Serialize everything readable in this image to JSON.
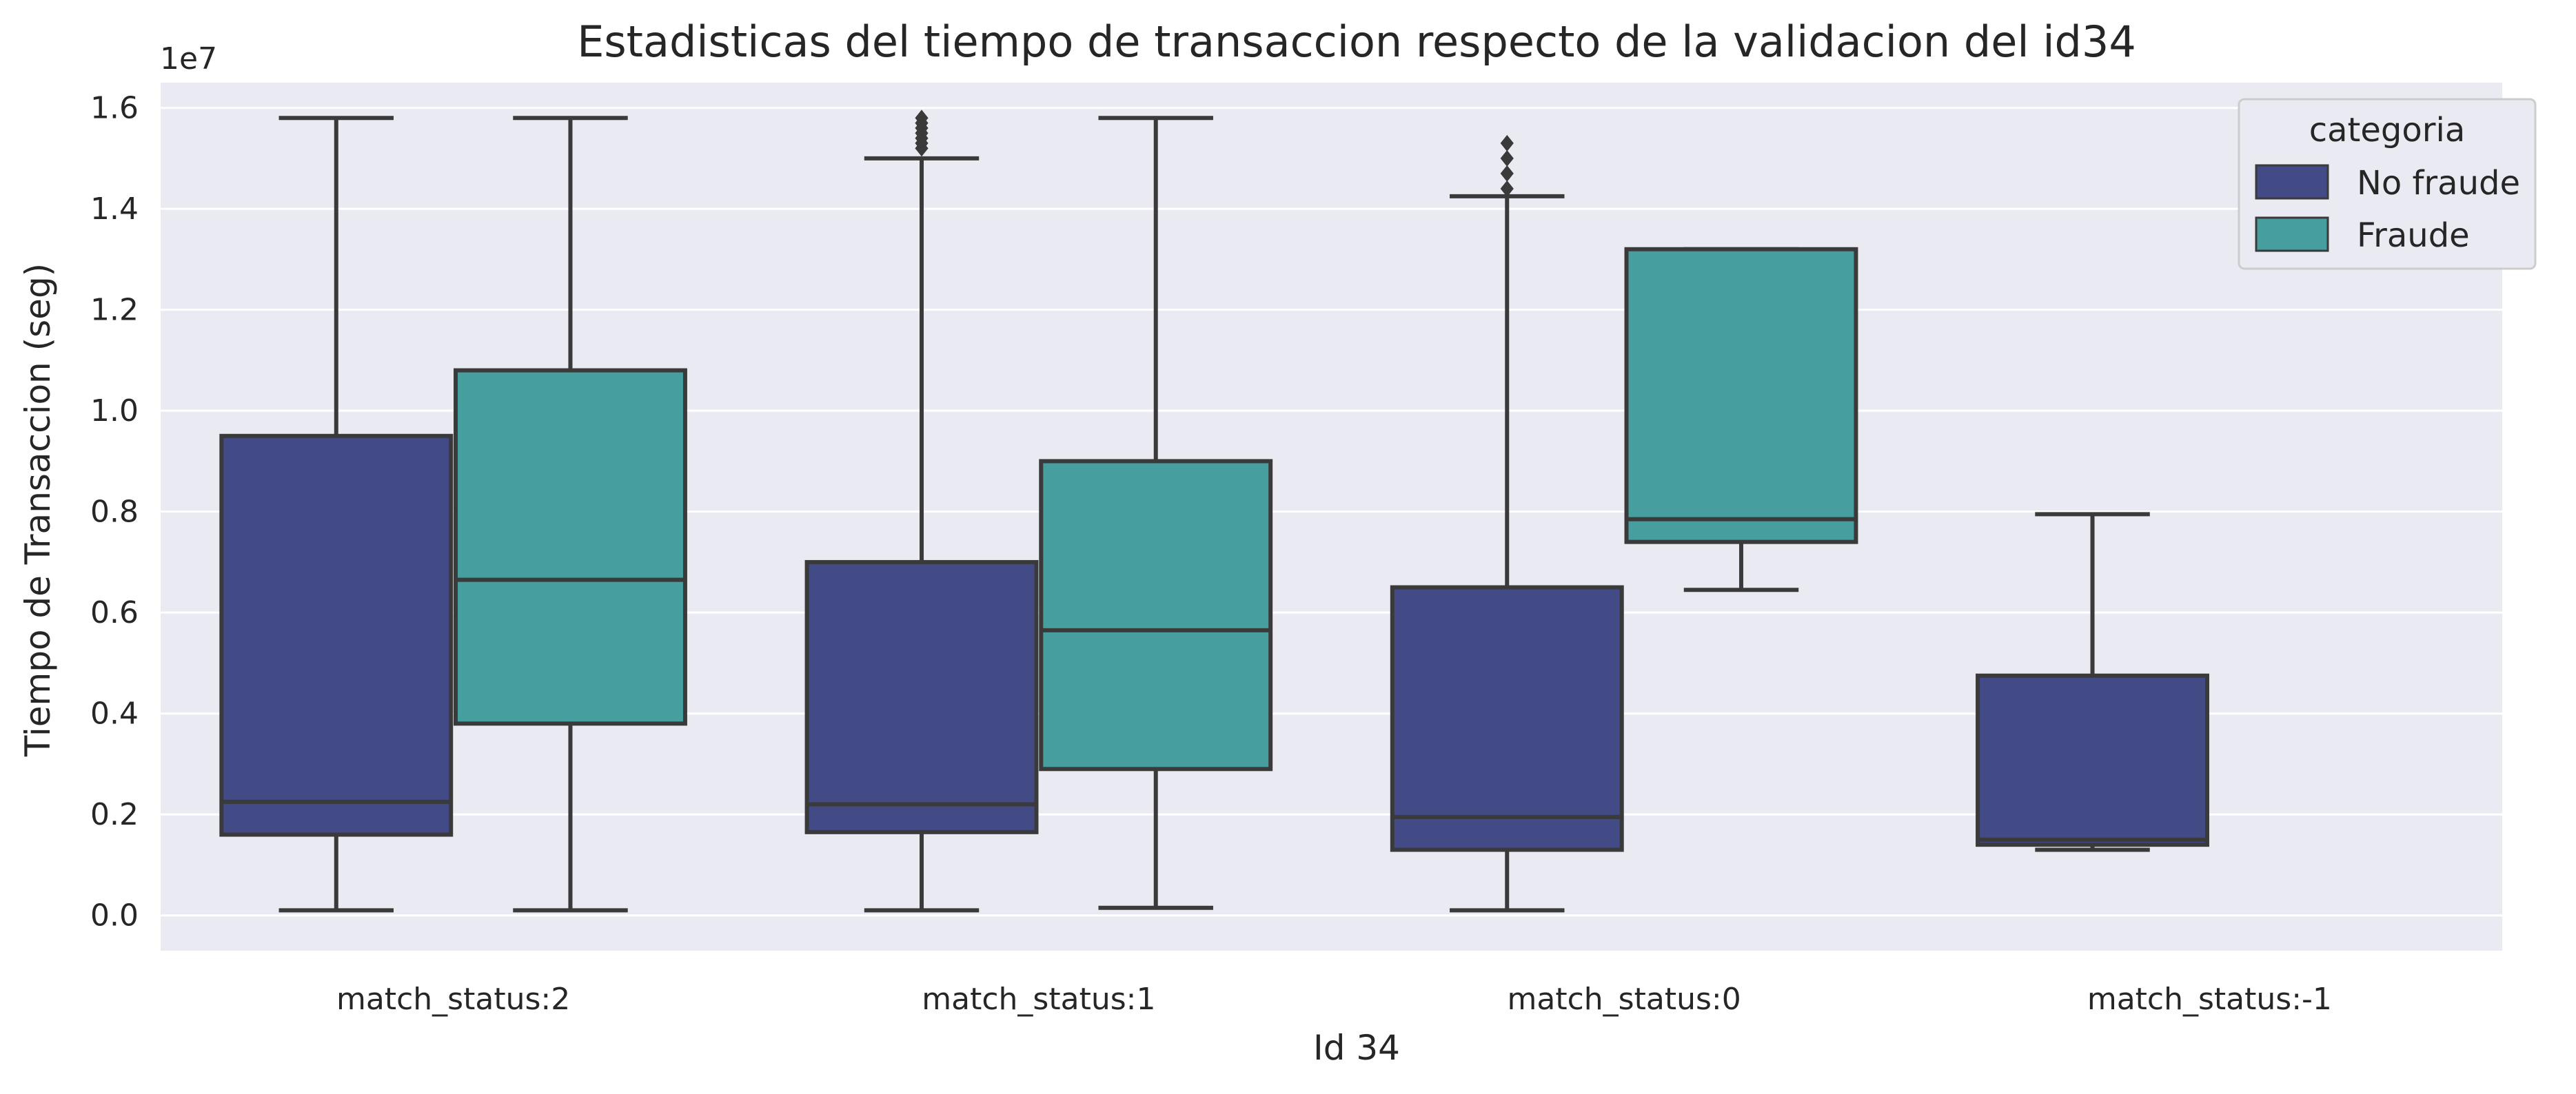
{
  "chart_data": {
    "type": "box",
    "title": "Estadisticas del tiempo de transaccion respecto de la validacion del id34",
    "xlabel": "Id 34",
    "ylabel": "Tiempo de Transaccion (seg)",
    "y_offset_label": "1e7",
    "y_scale": 10000000,
    "ylim": [
      -0.07,
      1.65
    ],
    "y_ticks": [
      0.0,
      0.2,
      0.4,
      0.6,
      0.8,
      1.0,
      1.2,
      1.4,
      1.6
    ],
    "y_tick_labels": [
      "0.0",
      "0.2",
      "0.4",
      "0.6",
      "0.8",
      "1.0",
      "1.2",
      "1.4",
      "1.6"
    ],
    "categories": [
      "match_status:2",
      "match_status:1",
      "match_status:0",
      "match_status:-1"
    ],
    "grid": true,
    "legend": {
      "title": "categoria",
      "placement": "top-right",
      "entries": [
        {
          "label": "No fraude",
          "color": "#424b86"
        },
        {
          "label": "Fraude",
          "color": "#469e9e"
        }
      ]
    },
    "series": [
      {
        "name": "No fraude",
        "color": "#424b86",
        "boxes": [
          {
            "category": "match_status:2",
            "whisker_low": 0.01,
            "q1": 0.16,
            "median": 0.225,
            "q3": 0.95,
            "whisker_high": 1.58,
            "outliers": []
          },
          {
            "category": "match_status:1",
            "whisker_low": 0.01,
            "q1": 0.165,
            "median": 0.22,
            "q3": 0.7,
            "whisker_high": 1.5,
            "outliers": [
              1.52,
              1.53,
              1.54,
              1.55,
              1.56,
              1.57,
              1.58
            ]
          },
          {
            "category": "match_status:0",
            "whisker_low": 0.01,
            "q1": 0.13,
            "median": 0.195,
            "q3": 0.65,
            "whisker_high": 1.425,
            "outliers": [
              1.44,
              1.47,
              1.5,
              1.53
            ]
          },
          {
            "category": "match_status:-1",
            "whisker_low": 0.13,
            "q1": 0.14,
            "median": 0.15,
            "q3": 0.475,
            "whisker_high": 0.795,
            "outliers": []
          }
        ]
      },
      {
        "name": "Fraude",
        "color": "#469e9e",
        "boxes": [
          {
            "category": "match_status:2",
            "whisker_low": 0.01,
            "q1": 0.38,
            "median": 0.665,
            "q3": 1.08,
            "whisker_high": 1.58,
            "outliers": []
          },
          {
            "category": "match_status:1",
            "whisker_low": 0.015,
            "q1": 0.29,
            "median": 0.565,
            "q3": 0.9,
            "whisker_high": 1.58,
            "outliers": []
          },
          {
            "category": "match_status:0",
            "whisker_low": 0.645,
            "q1": 0.74,
            "median": 0.785,
            "q3": 1.32,
            "whisker_high": 1.32,
            "outliers": []
          }
        ]
      }
    ]
  }
}
